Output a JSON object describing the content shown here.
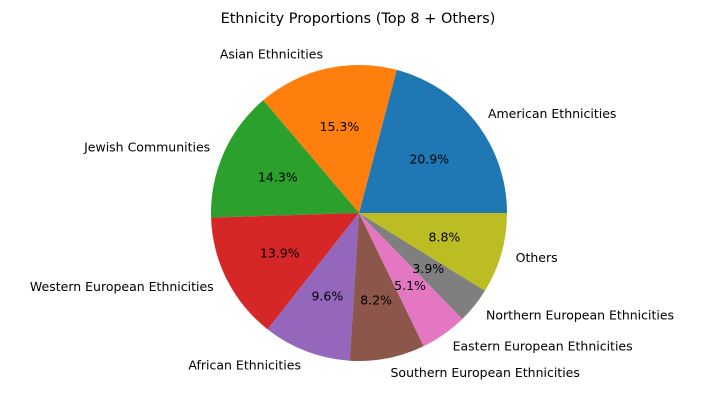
{
  "chart_data": {
    "type": "pie",
    "title": "Ethnicity Proportions (Top 8 + Others)",
    "start_angle_deg": 0,
    "direction": "counterclockwise",
    "legend": "none",
    "slices": [
      {
        "label": "American Ethnicities",
        "value": 20.9,
        "pct_label": "20.9%",
        "color": "#1f77b4"
      },
      {
        "label": "Asian Ethnicities",
        "value": 15.3,
        "pct_label": "15.3%",
        "color": "#ff7f0e"
      },
      {
        "label": "Jewish Communities",
        "value": 14.3,
        "pct_label": "14.3%",
        "color": "#2ca02c"
      },
      {
        "label": "Western European Ethnicities",
        "value": 13.9,
        "pct_label": "13.9%",
        "color": "#d62728"
      },
      {
        "label": "African Ethnicities",
        "value": 9.6,
        "pct_label": "9.6%",
        "color": "#9467bd"
      },
      {
        "label": "Southern European Ethnicities",
        "value": 8.2,
        "pct_label": "8.2%",
        "color": "#8c564b"
      },
      {
        "label": "Eastern European Ethnicities",
        "value": 5.1,
        "pct_label": "5.1%",
        "color": "#e377c2"
      },
      {
        "label": "Northern European Ethnicities",
        "value": 3.9,
        "pct_label": "3.9%",
        "color": "#7f7f7f"
      },
      {
        "label": "Others",
        "value": 8.8,
        "pct_label": "8.8%",
        "color": "#bcbd22"
      }
    ]
  }
}
